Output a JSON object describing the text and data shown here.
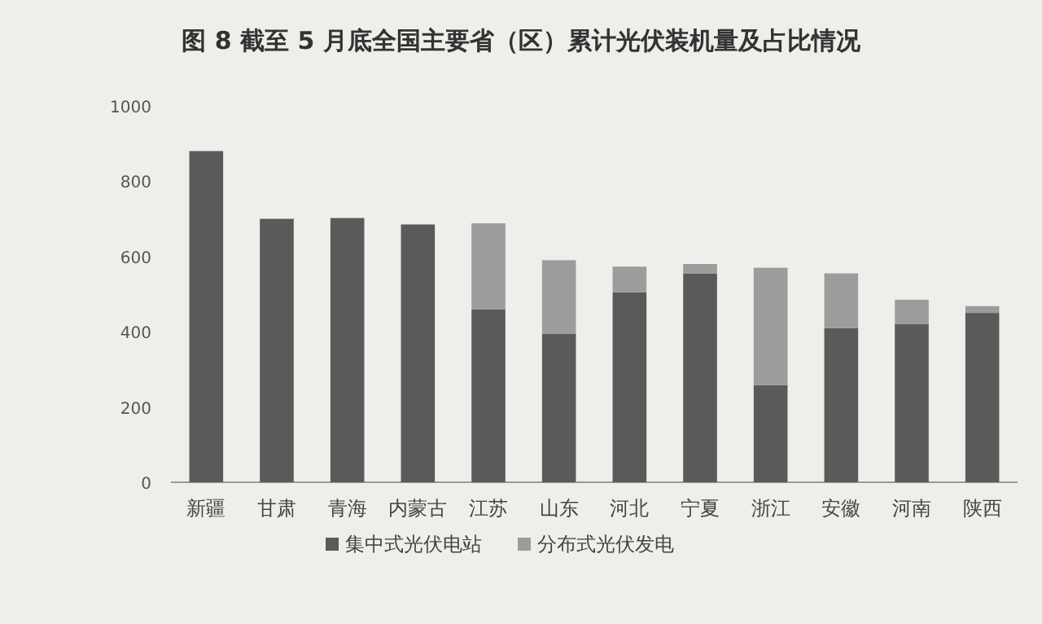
{
  "chart_data": {
    "type": "bar",
    "title": "图 8 截至 5 月底全国主要省（区）累计光伏装机量及占比情况",
    "categories": [
      "新疆",
      "甘肃",
      "青海",
      "内蒙古",
      "江苏",
      "山东",
      "河北",
      "宁夏",
      "浙江",
      "安徽",
      "河南",
      "陕西"
    ],
    "stacked": true,
    "series": [
      {
        "name": "集中式光伏电站",
        "color": "#5a5a5a",
        "values": [
          880,
          700,
          702,
          685,
          460,
          395,
          505,
          555,
          258,
          410,
          420,
          450
        ]
      },
      {
        "name": "分布式光伏发电",
        "color": "#9c9c9c",
        "values": [
          null,
          null,
          null,
          null,
          228,
          195,
          68,
          25,
          312,
          145,
          65,
          18
        ]
      }
    ],
    "ylim": [
      0,
      1000
    ],
    "yticks": [
      0,
      200,
      400,
      600,
      800,
      1000
    ],
    "grid": false,
    "legend": "bottom"
  }
}
